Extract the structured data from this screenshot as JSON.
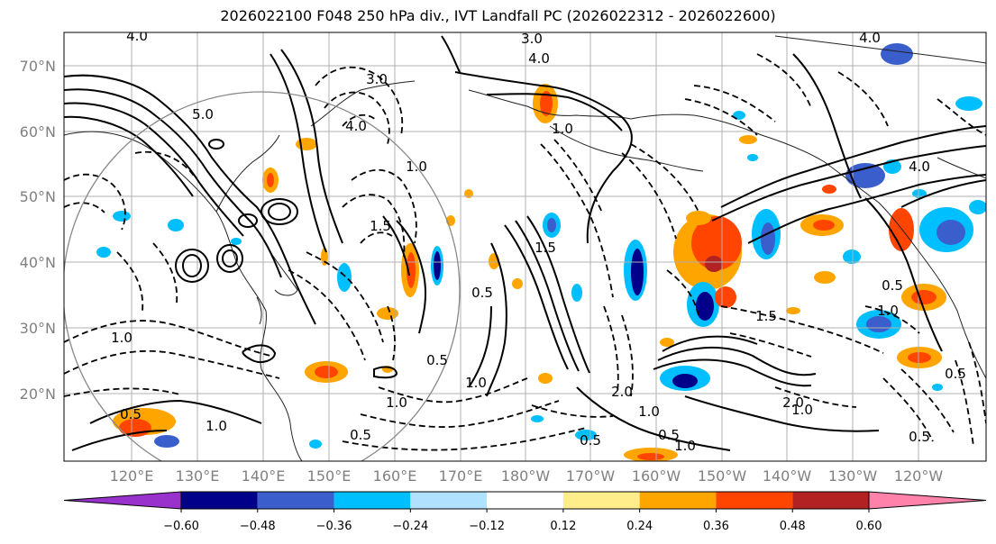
{
  "title": "2026022100 F048 250 hPa div., IVT Landfall PC (2026022312 - 2026022600)",
  "colors": {
    "frame": "#000000",
    "grid": "#b0b0b0",
    "coast": "#222222",
    "contour": "#000000",
    "circle": "#888888"
  },
  "map": {
    "latitudes": [
      "70°N",
      "60°N",
      "50°N",
      "40°N",
      "30°N",
      "20°N"
    ],
    "longitudes": [
      "120°E",
      "130°E",
      "140°E",
      "150°E",
      "160°E",
      "170°E",
      "180°W",
      "170°W",
      "160°W",
      "150°W",
      "140°W",
      "130°W",
      "120°W"
    ],
    "contour_labels": [
      "4.0",
      "3.0",
      "5.0",
      "4.0",
      "3.0",
      "1.0",
      "1.5",
      "4.0",
      "1.0",
      "0.5",
      "0.5",
      "1.0",
      "1.5",
      "4.0",
      "1.0",
      "0.5",
      "1.0",
      "0.5",
      "1.0",
      "2.0",
      "1.5",
      "0.5",
      "1.0",
      "4.0",
      "0.5",
      "1.0",
      "0.5",
      "1.0",
      "0.5",
      "2.0",
      "0.5",
      "1.0"
    ]
  },
  "colorbar": {
    "ticks": [
      "−0.60",
      "−0.48",
      "−0.36",
      "−0.24",
      "−0.12",
      "0.12",
      "0.24",
      "0.36",
      "0.48",
      "0.60"
    ],
    "colors": [
      "#9932cc",
      "#00008b",
      "#3a5fcd",
      "#00bfff",
      "#b0e2ff",
      "#ffffff",
      "#ffec8b",
      "#ffa500",
      "#ff4500",
      "#b22222",
      "#ff82ab"
    ]
  }
}
